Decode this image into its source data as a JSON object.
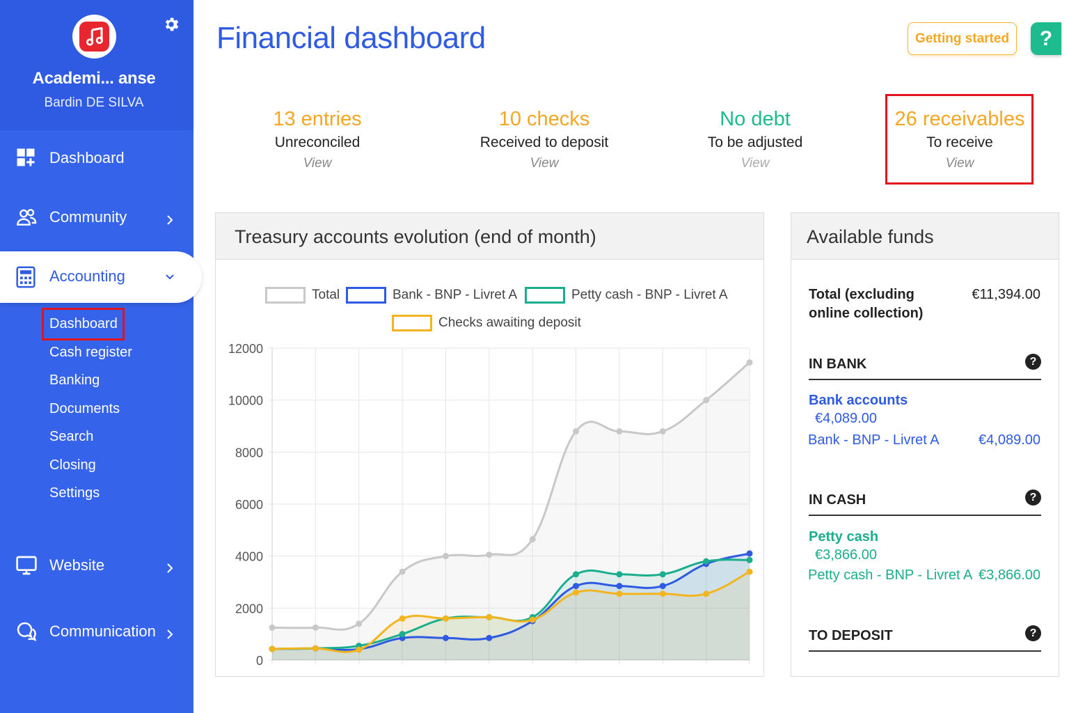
{
  "sidebar": {
    "org_name": "Academi... anse",
    "user_name": "Bardin DE SILVA",
    "nav": {
      "dashboard": "Dashboard",
      "community": "Community",
      "accounting": "Accounting",
      "website": "Website",
      "communication": "Communication"
    },
    "accounting_sub": [
      "Dashboard",
      "Cash register",
      "Banking",
      "Documents",
      "Search",
      "Closing",
      "Settings"
    ]
  },
  "header": {
    "title": "Financial dashboard",
    "getting_started": "Getting started",
    "help": "?"
  },
  "stats": [
    {
      "big": "13 entries",
      "mid": "Unreconciled",
      "view": "View",
      "color": "#f5a623"
    },
    {
      "big": "10 checks",
      "mid": "Received to deposit",
      "view": "View",
      "color": "#f5a623"
    },
    {
      "big": "No debt",
      "mid": "To be adjusted",
      "view": "View",
      "color": "#1dbb8e"
    },
    {
      "big": "26 receivables",
      "mid": "To receive",
      "view": "View",
      "color": "#f5a623"
    }
  ],
  "treasury": {
    "title": "Treasury accounts evolution (end of month)"
  },
  "chart_data": {
    "type": "line",
    "title": "Treasury accounts evolution (end of month)",
    "x": [
      1,
      2,
      3,
      4,
      5,
      6,
      7,
      8,
      9,
      10,
      11,
      12
    ],
    "ylim": [
      0,
      12000
    ],
    "yticks": [
      0,
      2000,
      4000,
      6000,
      8000,
      10000,
      12000
    ],
    "grid": true,
    "legend_position": "top",
    "series": [
      {
        "name": "Total",
        "color": "#c8c8c8",
        "values": [
          1250,
          1250,
          1400,
          3400,
          4000,
          4050,
          4650,
          8800,
          8800,
          8800,
          10000,
          11450
        ]
      },
      {
        "name": "Bank - BNP - Livret A",
        "color": "#2f5be3",
        "values": [
          430,
          450,
          420,
          850,
          850,
          850,
          1500,
          2850,
          2850,
          2850,
          3700,
          4100
        ]
      },
      {
        "name": "Petty cash - BNP - Livret A",
        "color": "#1aae8e",
        "values": [
          430,
          450,
          550,
          1000,
          1600,
          1650,
          1650,
          3300,
          3300,
          3300,
          3800,
          3850
        ]
      },
      {
        "name": "Checks awaiting deposit",
        "color": "#f2b51f",
        "values": [
          430,
          450,
          400,
          1600,
          1600,
          1650,
          1550,
          2600,
          2550,
          2550,
          2550,
          3400
        ]
      }
    ]
  },
  "funds": {
    "title": "Available funds",
    "total_label_1": "Total (excluding",
    "total_label_2": "online collection)",
    "total_value": "€11,394.00",
    "in_bank": "IN BANK",
    "bank_accounts": "Bank accounts",
    "bank_accounts_total": "€4,089.00",
    "bank_line_name": "Bank - BNP - Livret A",
    "bank_line_value": "€4,089.00",
    "in_cash": "IN CASH",
    "petty_cash": "Petty cash",
    "petty_cash_total": "€3,866.00",
    "cash_line_name": "Petty cash - BNP - Livret A",
    "cash_line_value": "€3,866.00",
    "to_deposit": "TO DEPOSIT",
    "q": "?"
  }
}
